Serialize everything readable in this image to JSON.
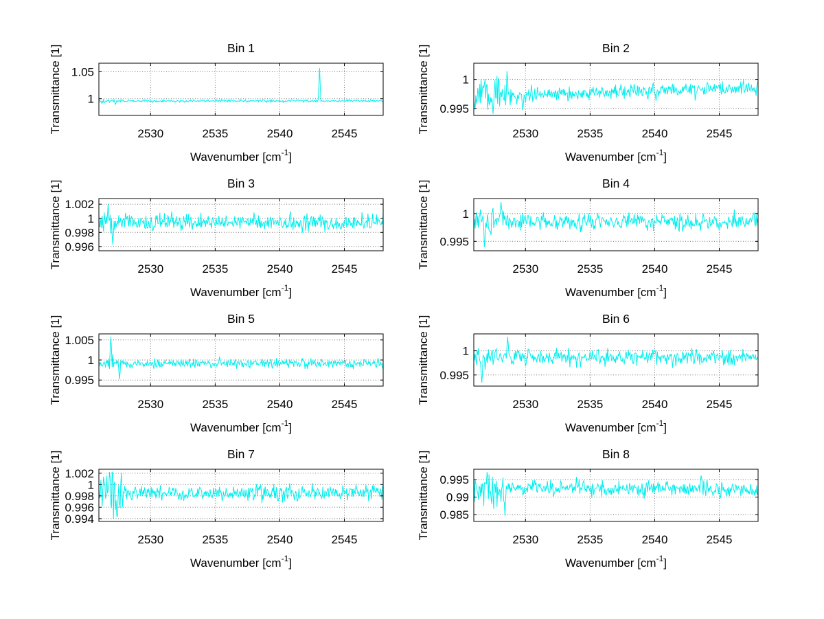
{
  "figure": {
    "background": "#ffffff",
    "text_color": "#000000"
  },
  "chart_data": {
    "type": "line",
    "layout": "4x2 subplot grid",
    "xlabel": {
      "prefix": "Wavenumber [cm",
      "sup": "-1",
      "suffix": "]"
    },
    "ylabel": "Transmittance [1]",
    "xlim": [
      2526,
      2548
    ],
    "xticks": [
      2530,
      2535,
      2540,
      2545
    ],
    "grid": "dotted",
    "line_color": "#00EEEE",
    "n_points": 430,
    "subplots": [
      {
        "title": "Bin 1",
        "ylim": [
          0.969,
          1.066
        ],
        "ytick_values": [
          1,
          1.05
        ],
        "ytick_labels": [
          "1",
          "1.05"
        ],
        "baseline": 0.996,
        "noise": 0.002,
        "left_fraction": 0.04,
        "left_mult": 1.6,
        "trend": [
          0,
          0
        ],
        "spikes": [
          {
            "x": 2543.1,
            "y": 1.057
          },
          {
            "x": 2527.3,
            "y": 0.9895
          }
        ],
        "seed": 101
      },
      {
        "title": "Bin 2",
        "ylim": [
          0.9938,
          1.0028
        ],
        "ytick_values": [
          0.995,
          1
        ],
        "ytick_labels": [
          "0.995",
          "1"
        ],
        "baseline": 0.9983,
        "noise": 0.0011,
        "left_fraction": 0.13,
        "left_mult": 2.6,
        "trend": [
          -0.0013,
          0.0004
        ],
        "spikes": [
          {
            "x": 2529.8,
            "y": 0.9947
          }
        ],
        "seed": 202
      },
      {
        "title": "Bin 3",
        "ylim": [
          0.9954,
          1.0028
        ],
        "ytick_values": [
          0.996,
          0.998,
          1,
          1.002
        ],
        "ytick_labels": [
          "0.996",
          "0.998",
          "1",
          "1.002"
        ],
        "baseline": 0.9994,
        "noise": 0.00095,
        "left_fraction": 0.05,
        "left_mult": 2.0,
        "trend": [
          0,
          0
        ],
        "spikes": [
          {
            "x": 2526.5,
            "y": 0.9992
          },
          {
            "x": 2527.1,
            "y": 0.9963
          }
        ],
        "seed": 303
      },
      {
        "title": "Bin 4",
        "ylim": [
          0.9933,
          1.0027
        ],
        "ytick_values": [
          0.995,
          1
        ],
        "ytick_labels": [
          "0.995",
          "1"
        ],
        "baseline": 0.9985,
        "noise": 0.0013,
        "left_fraction": 0.07,
        "left_mult": 2.0,
        "trend": [
          0,
          0
        ],
        "spikes": [
          {
            "x": 2526.8,
            "y": 0.994
          },
          {
            "x": 2528.1,
            "y": 1.0021
          }
        ],
        "seed": 404
      },
      {
        "title": "Bin 5",
        "ylim": [
          0.9935,
          1.0065
        ],
        "ytick_values": [
          0.995,
          1,
          1.005
        ],
        "ytick_labels": [
          "0.995",
          "1",
          "1.005"
        ],
        "baseline": 0.9991,
        "noise": 0.00095,
        "left_fraction": 0.06,
        "left_mult": 2.0,
        "trend": [
          0,
          0
        ],
        "spikes": [
          {
            "x": 2526.9,
            "y": 1.0058
          },
          {
            "x": 2527.6,
            "y": 0.9952
          }
        ],
        "seed": 505
      },
      {
        "title": "Bin 6",
        "ylim": [
          0.9927,
          1.0035
        ],
        "ytick_values": [
          0.995,
          1
        ],
        "ytick_labels": [
          "0.995",
          "1"
        ],
        "baseline": 0.9987,
        "noise": 0.0014,
        "left_fraction": 0.05,
        "left_mult": 1.8,
        "trend": [
          0,
          0
        ],
        "spikes": [
          {
            "x": 2526.6,
            "y": 0.9934
          },
          {
            "x": 2528.6,
            "y": 1.0029
          }
        ],
        "seed": 606
      },
      {
        "title": "Bin 7",
        "ylim": [
          0.9935,
          1.0027
        ],
        "ytick_values": [
          0.994,
          0.996,
          0.998,
          1,
          1.002
        ],
        "ytick_labels": [
          "0.994",
          "0.996",
          "0.998",
          "1",
          "1.002"
        ],
        "baseline": 0.9986,
        "noise": 0.0012,
        "left_fraction": 0.09,
        "left_mult": 2.6,
        "trend": [
          0,
          0
        ],
        "spikes": [
          {
            "x": 2526.8,
            "y": 1.0022
          },
          {
            "x": 2527.4,
            "y": 0.9944
          }
        ],
        "seed": 707
      },
      {
        "title": "Bin 8",
        "ylim": [
          0.983,
          0.998
        ],
        "ytick_values": [
          0.985,
          0.99,
          0.995
        ],
        "ytick_labels": [
          "0.985",
          "0.99",
          "0.995"
        ],
        "baseline": 0.9924,
        "noise": 0.0018,
        "left_fraction": 0.11,
        "left_mult": 2.3,
        "trend": [
          0.0005,
          -0.0002
        ],
        "spikes": [
          {
            "x": 2528.4,
            "y": 0.9846
          },
          {
            "x": 2527.0,
            "y": 0.9972
          },
          {
            "x": 2543.6,
            "y": 0.9962
          }
        ],
        "seed": 808
      }
    ]
  }
}
